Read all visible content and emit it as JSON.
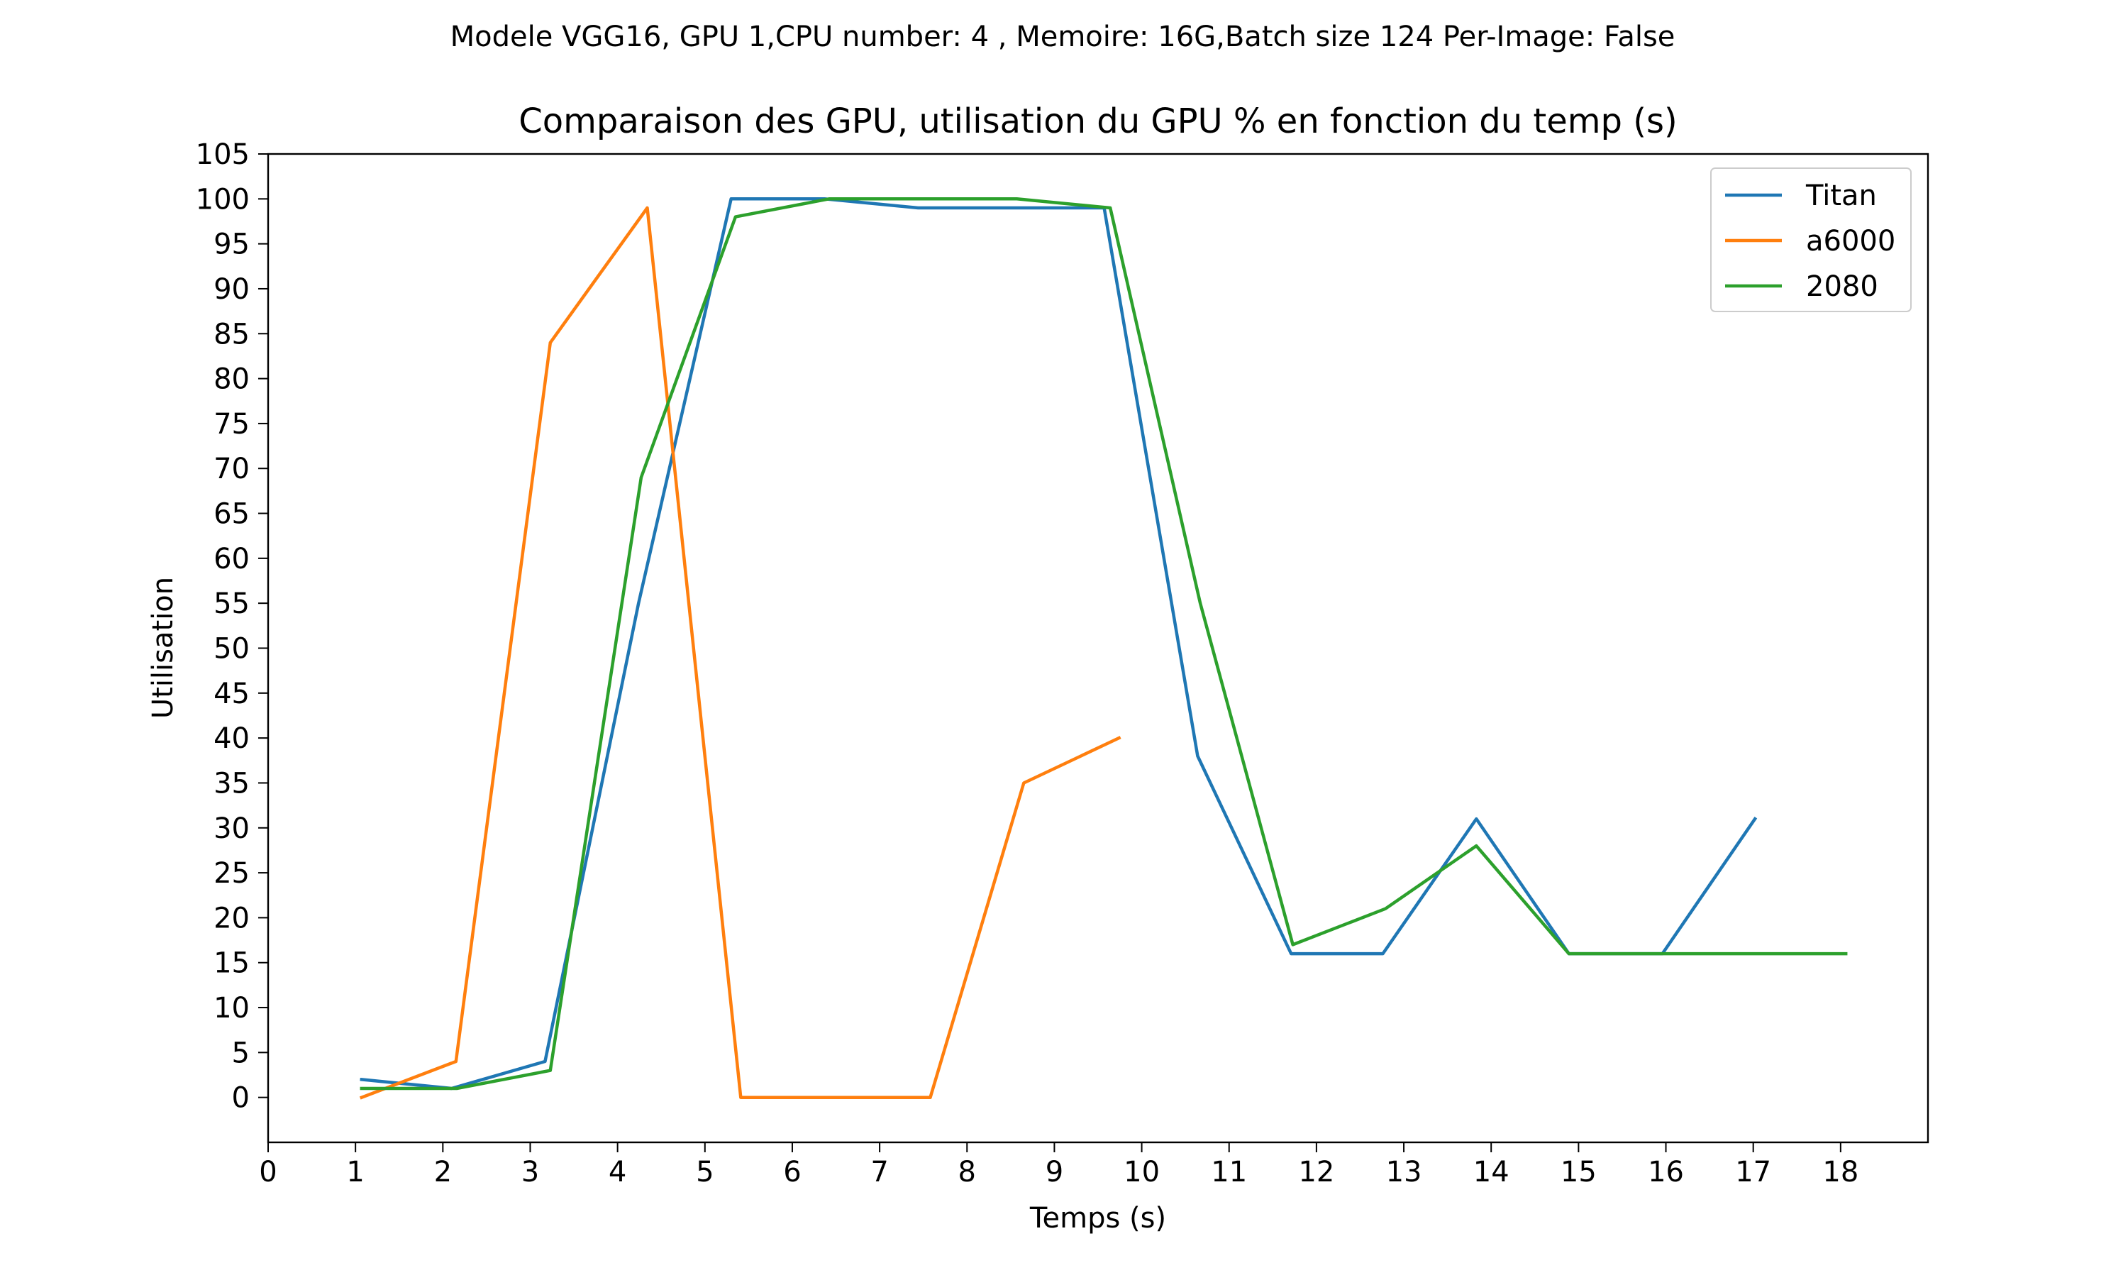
{
  "suptitle": "Modele VGG16, GPU 1,CPU number: 4 , Memoire: 16G,Batch size 124 Per-Image: False",
  "chart_data": {
    "type": "line",
    "title": "Comparaison des GPU, utilisation du GPU % en fonction du temp (s)",
    "xlabel": "Temps (s)",
    "ylabel": "Utilisation",
    "xlim": [
      0,
      19
    ],
    "ylim": [
      -5,
      105
    ],
    "xticks": [
      0,
      1,
      2,
      3,
      4,
      5,
      6,
      7,
      8,
      9,
      10,
      11,
      12,
      13,
      14,
      15,
      16,
      17,
      18
    ],
    "yticks": [
      0,
      5,
      10,
      15,
      20,
      25,
      30,
      35,
      40,
      45,
      50,
      55,
      60,
      65,
      70,
      75,
      80,
      85,
      90,
      95,
      100,
      105
    ],
    "legend_position": "top-right",
    "series": [
      {
        "name": "Titan",
        "color": "#1f77b4",
        "x": [
          1.07,
          2.1,
          3.17,
          4.24,
          5.3,
          6.37,
          7.44,
          8.52,
          9.57,
          10.64,
          11.71,
          12.76,
          13.83,
          14.89,
          15.96,
          17.02
        ],
        "y": [
          2,
          1,
          4,
          55,
          100,
          100,
          99,
          99,
          99,
          38,
          16,
          16,
          31,
          16,
          16,
          31
        ]
      },
      {
        "name": "a6000",
        "color": "#ff7f0e",
        "x": [
          1.07,
          2.15,
          3.23,
          4.34,
          5.41,
          6.5,
          7.58,
          8.65,
          9.74
        ],
        "y": [
          0,
          4,
          84,
          99,
          0,
          0,
          0,
          35,
          40
        ]
      },
      {
        "name": "2080",
        "color": "#2ca02c",
        "x": [
          1.07,
          2.16,
          3.23,
          4.27,
          5.35,
          6.42,
          7.5,
          8.57,
          9.64,
          10.67,
          11.73,
          12.79,
          13.83,
          14.89,
          15.95,
          17.01,
          18.06
        ],
        "y": [
          1,
          1,
          3,
          69,
          98,
          100,
          100,
          100,
          99,
          55,
          17,
          21,
          28,
          16,
          16,
          16,
          16
        ]
      }
    ]
  }
}
